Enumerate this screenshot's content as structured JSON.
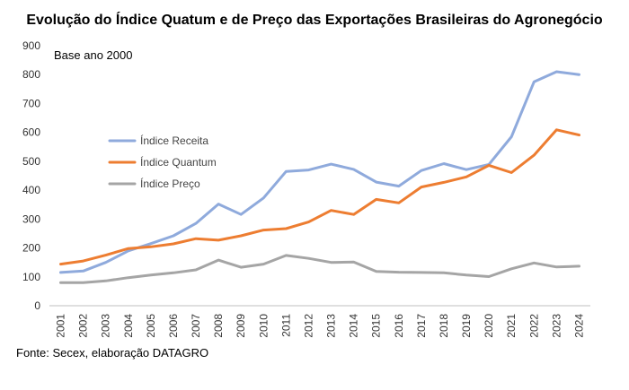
{
  "chart_data": {
    "type": "line",
    "title": "Evolução do Índice Quatum e de Preço das Exportações Brasileiras do Agronegócio",
    "subtitle": "Base ano 2000",
    "source": "Fonte: Secex, elaboração DATAGRO",
    "categories": [
      "2001",
      "2002",
      "2003",
      "2004",
      "2005",
      "2006",
      "2007",
      "2008",
      "2009",
      "2010",
      "2011",
      "2012",
      "2013",
      "2014",
      "2015",
      "2016",
      "2017",
      "2018",
      "2019",
      "2020",
      "2021",
      "2022",
      "2023",
      "2024"
    ],
    "ylim": [
      0,
      900
    ],
    "yticks": [
      0,
      100,
      200,
      300,
      400,
      500,
      600,
      700,
      800,
      900
    ],
    "grid": false,
    "legend_position": "upper-left inside plot",
    "series": [
      {
        "name": "Índice Receita",
        "color": "#8FAADC",
        "values": [
          115,
          120,
          150,
          190,
          215,
          242,
          285,
          352,
          316,
          373,
          465,
          470,
          490,
          472,
          428,
          414,
          468,
          492,
          471,
          489,
          585,
          775,
          810,
          800
        ]
      },
      {
        "name": "Índice Quantum",
        "color": "#ED7D31",
        "values": [
          144,
          155,
          175,
          198,
          204,
          214,
          232,
          227,
          242,
          262,
          267,
          290,
          330,
          316,
          368,
          356,
          411,
          427,
          446,
          486,
          461,
          521,
          609,
          591
        ]
      },
      {
        "name": "Índice Preço",
        "color": "#A5A5A5",
        "values": [
          80,
          80,
          86,
          97,
          106,
          114,
          124,
          158,
          133,
          144,
          174,
          164,
          150,
          151,
          119,
          116,
          115,
          114,
          106,
          101,
          128,
          148,
          134,
          137
        ]
      }
    ]
  }
}
